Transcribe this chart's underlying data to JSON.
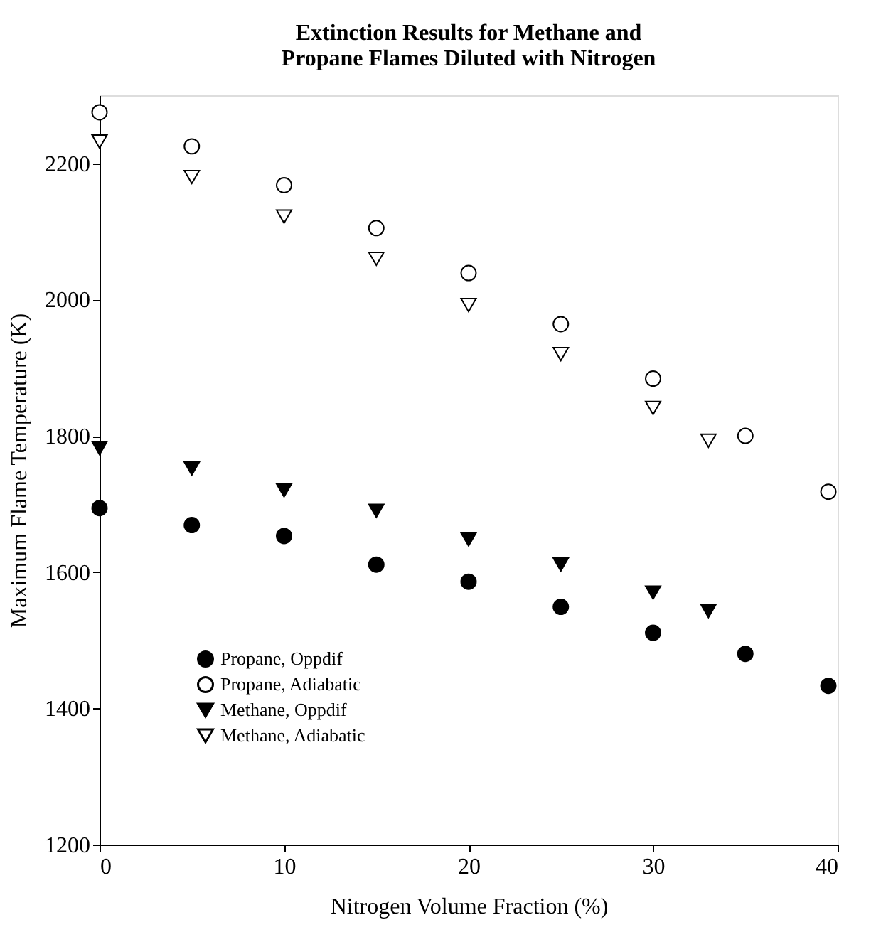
{
  "chart_data": {
    "type": "scatter",
    "title": "Extinction Results for Methane and\nPropane Flames Diluted with Nitrogen",
    "xlabel": "Nitrogen Volume Fraction (%)",
    "ylabel": "Maximum Flame Temperature (K)",
    "xlim": [
      0,
      40
    ],
    "xticks": [
      0,
      10,
      20,
      30,
      40
    ],
    "ylim": [
      1200,
      2300
    ],
    "yticks": [
      1200,
      1400,
      1600,
      1800,
      2000,
      2200
    ],
    "grid": false,
    "legend": "bottom left",
    "series": [
      {
        "name": "Propane, Oppdif",
        "color": "#000000",
        "marker": "circle",
        "x": [
          0,
          5,
          10,
          15,
          20,
          25,
          30,
          35,
          39.5
        ],
        "values": [
          1694,
          1669,
          1653,
          1611,
          1586,
          1549,
          1511,
          1480,
          1433
        ]
      },
      {
        "name": "Propane, Adiabatic",
        "color": "#ffffff",
        "marker": "circle",
        "x": [
          0,
          5,
          10,
          15,
          20,
          25,
          30,
          35,
          39.5
        ],
        "values": [
          2275,
          2225,
          2168,
          2105,
          2039,
          1964,
          1884,
          1800,
          1718
        ]
      },
      {
        "name": "Methane, Oppdif",
        "color": "#000000",
        "marker": "triangle-down",
        "x": [
          0,
          5,
          10,
          15,
          20,
          25,
          30,
          33
        ],
        "values": [
          1782,
          1752,
          1720,
          1690,
          1648,
          1611,
          1570,
          1543
        ]
      },
      {
        "name": "Methane, Adiabatic",
        "color": "#ffffff",
        "marker": "triangle-down",
        "x": [
          0,
          5,
          10,
          15,
          20,
          25,
          30,
          33
        ],
        "values": [
          2232,
          2180,
          2122,
          2060,
          1992,
          1920,
          1841,
          1793
        ]
      }
    ]
  }
}
